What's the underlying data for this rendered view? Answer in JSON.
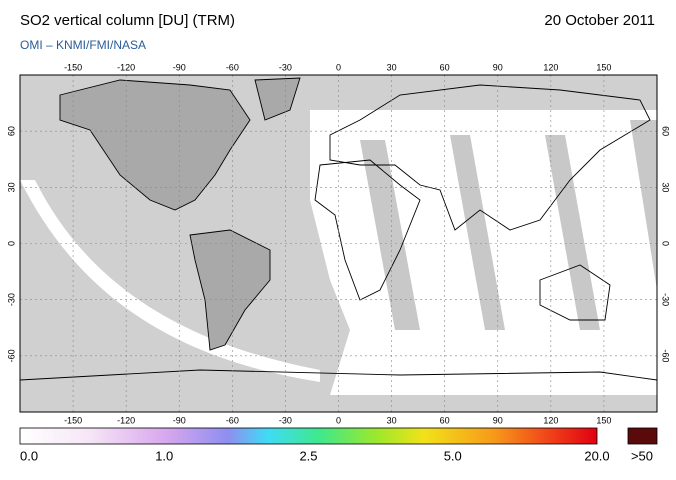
{
  "header": {
    "title": "SO2 vertical column [DU] (TRM)",
    "date": "20 October 2011",
    "subtitle": "OMI  –  KNMI/FMI/NASA"
  },
  "map": {
    "xlim": [
      -180,
      180
    ],
    "ylim": [
      -90,
      90
    ],
    "xticks": [
      -150,
      -120,
      -90,
      -60,
      -30,
      0,
      30,
      60,
      90,
      120,
      150
    ],
    "yticks": [
      -60,
      -30,
      0,
      30,
      60
    ],
    "grid": true
  },
  "colorbar": {
    "labels": [
      "0.0",
      "1.0",
      "2.5",
      "5.0",
      "20.0"
    ],
    "overflow_label": ">50"
  }
}
